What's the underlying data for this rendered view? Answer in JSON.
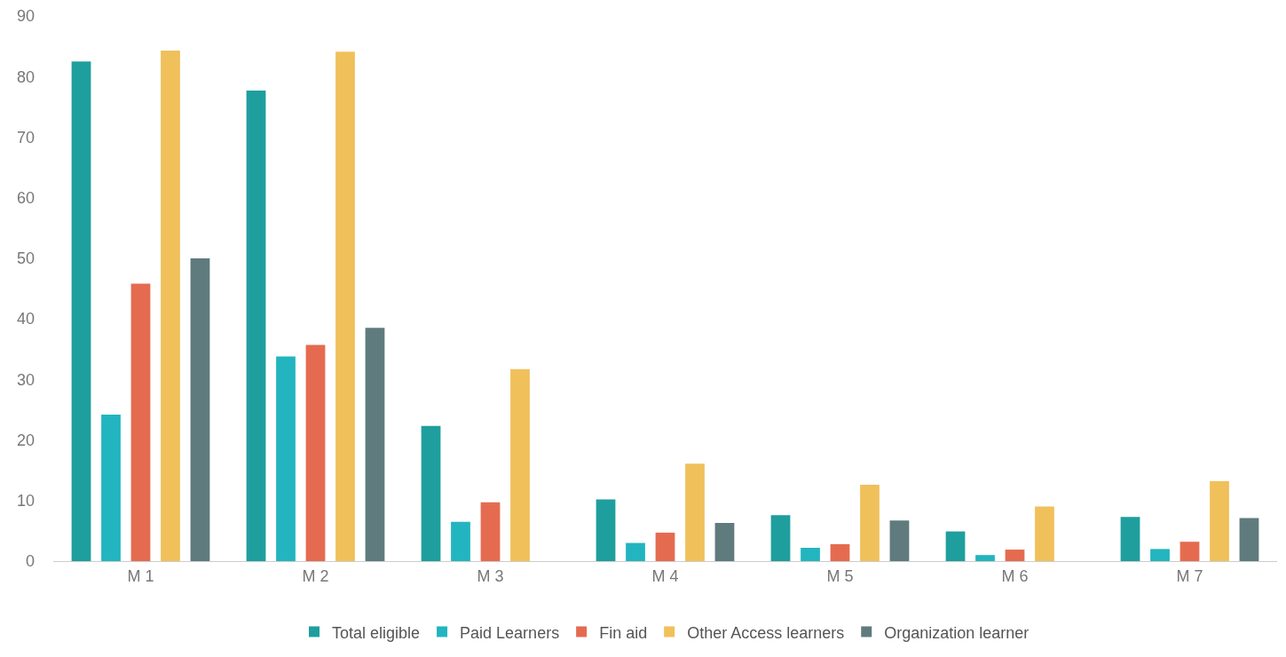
{
  "chart_data": {
    "type": "bar",
    "categories": [
      "M 1",
      "M 2",
      "M 3",
      "M 4",
      "M 5",
      "M 6",
      "M 7"
    ],
    "series": [
      {
        "name": "Total eligible",
        "color": "#1f9e9e",
        "values": [
          82.5,
          77.7,
          22.3,
          10.2,
          7.6,
          4.9,
          7.3
        ]
      },
      {
        "name": "Paid Learners",
        "color": "#22b5bf",
        "values": [
          24.2,
          33.8,
          6.5,
          3.0,
          2.2,
          1.0,
          2.0
        ]
      },
      {
        "name": "Fin aid",
        "color": "#e56b50",
        "values": [
          45.8,
          35.7,
          9.7,
          4.7,
          2.8,
          1.9,
          3.2
        ]
      },
      {
        "name": "Other Access learners",
        "color": "#f0c05a",
        "values": [
          84.3,
          84.1,
          31.7,
          16.1,
          12.6,
          9.0,
          13.2
        ]
      },
      {
        "name": "Organization learner",
        "color": "#5f7b7e",
        "values": [
          50.0,
          38.5,
          null,
          6.3,
          6.7,
          null,
          7.1
        ]
      }
    ],
    "ylim": [
      0,
      90
    ],
    "yticks": [
      0,
      10,
      20,
      30,
      40,
      50,
      60,
      70,
      80,
      90
    ],
    "grid": false,
    "legend": "bottom"
  }
}
